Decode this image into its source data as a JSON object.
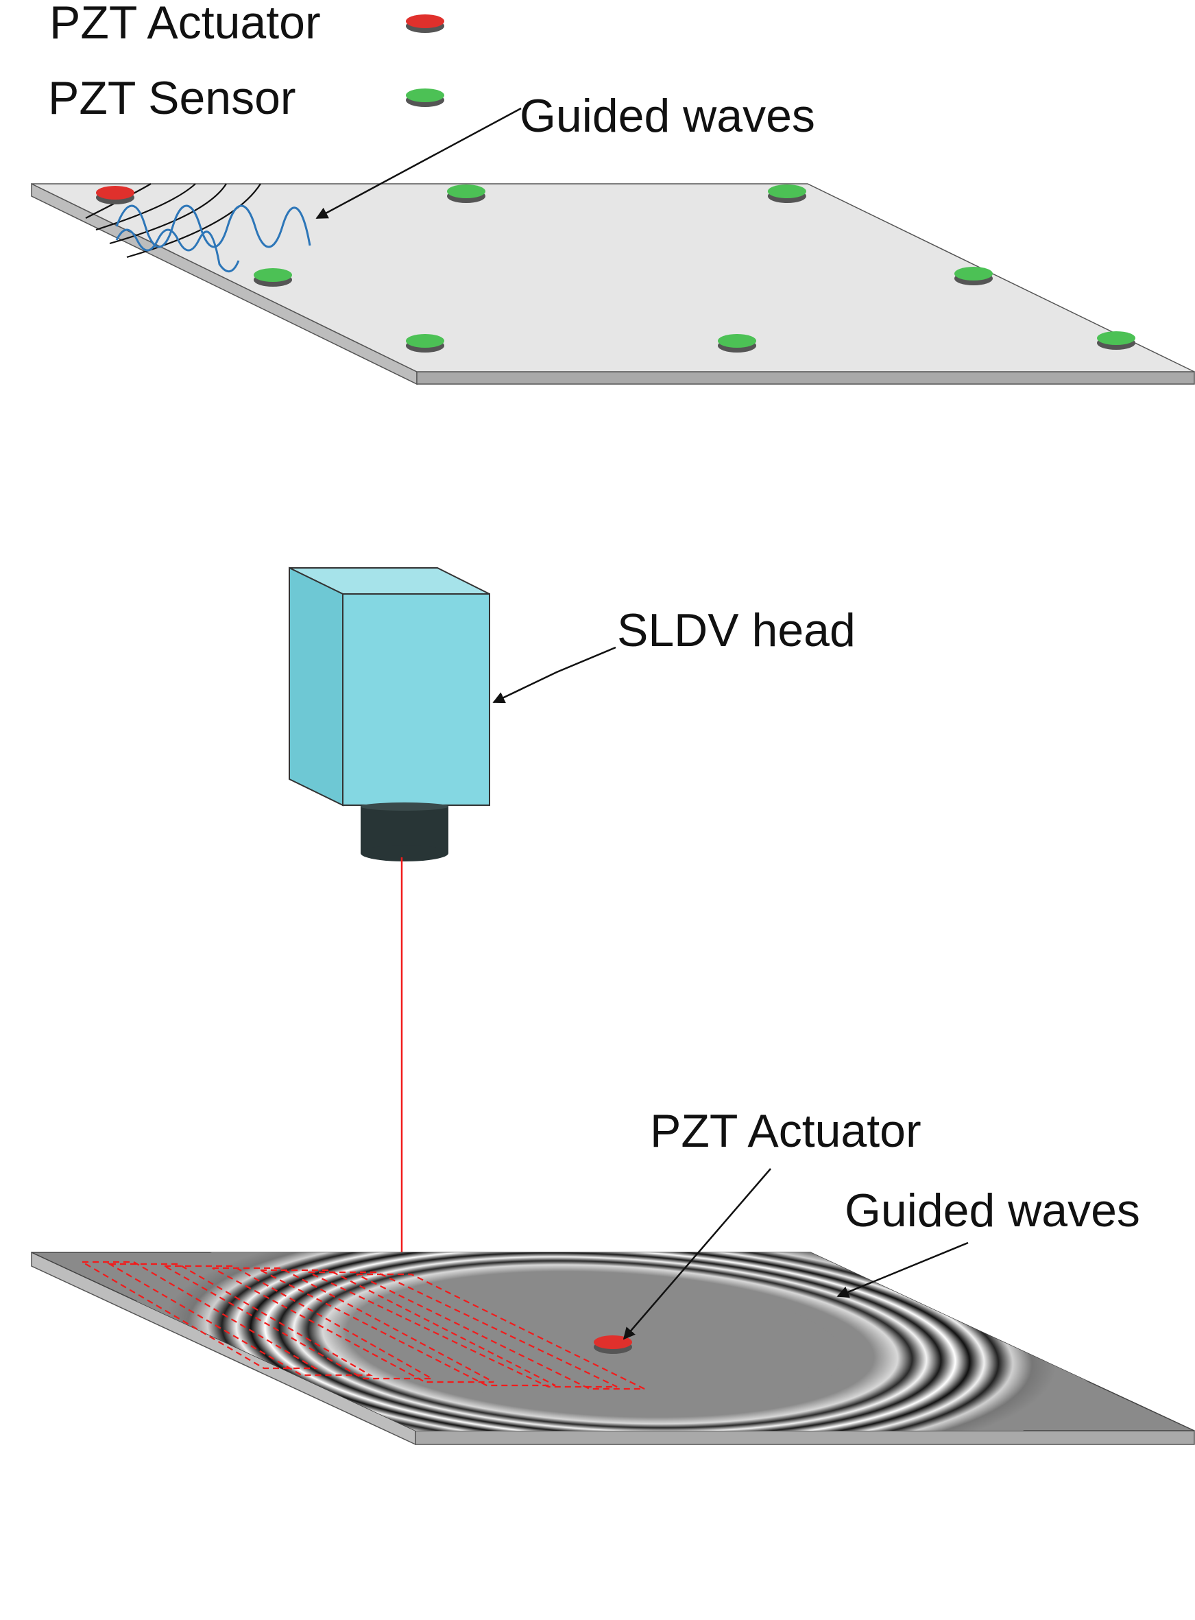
{
  "legend": {
    "actuator_label": "PZT Actuator",
    "sensor_label": "PZT Sensor"
  },
  "top_panel": {
    "guided_waves_label": "Guided waves"
  },
  "middle_panel": {
    "sldv_head_label": "SLDV head"
  },
  "bottom_panel": {
    "actuator_label": "PZT Actuator",
    "guided_waves_label": "Guided waves"
  },
  "colors": {
    "actuator": "#e0302c",
    "sensor": "#4cc155",
    "plate_top": "#e6e6e6",
    "plate_side": "#b5b5b5",
    "wave_lines": "#2d76b8",
    "sldv_body": "#84d7e2",
    "sldv_lens": "#283536",
    "laser": "#f21b1b",
    "wavefield_bg": "#8a8a8a"
  }
}
